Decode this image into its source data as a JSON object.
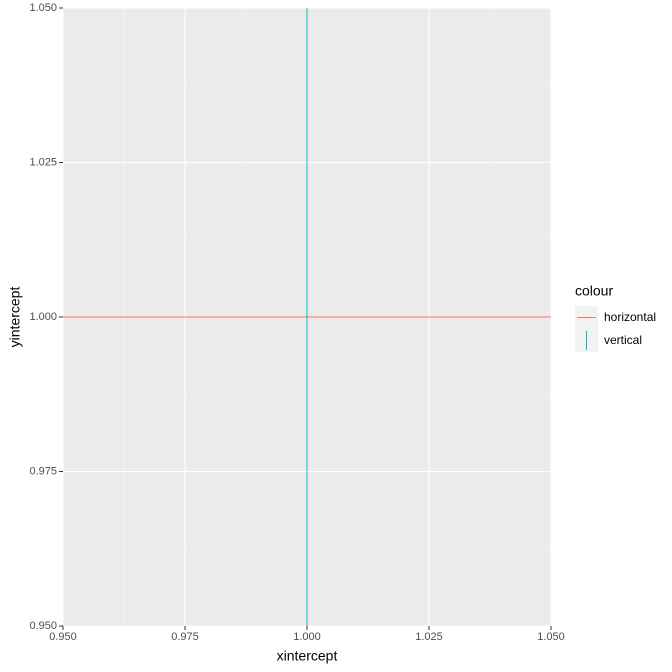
{
  "chart_data": {
    "type": "refline",
    "x_label": "xintercept",
    "y_label": "yintercept",
    "legend_title": "colour",
    "legend_position": "right",
    "series": [
      {
        "name": "horizontal",
        "color": "#F8766D",
        "orientation": "h",
        "values": [
          1
        ]
      },
      {
        "name": "vertical",
        "color": "#00BFC4",
        "orientation": "v",
        "values": [
          1
        ]
      }
    ],
    "xlim": [
      0.95,
      1.05
    ],
    "xticks": [
      {
        "value": 0.95,
        "label": "0.950"
      },
      {
        "value": 0.975,
        "label": "0.975"
      },
      {
        "value": 1,
        "label": "1.000"
      },
      {
        "value": 1.025,
        "label": "1.025"
      },
      {
        "value": 1.05,
        "label": "1.050"
      }
    ],
    "ylim": [
      0.95,
      1.05
    ],
    "yticks": [
      {
        "value": 0.95,
        "label": "0.950"
      },
      {
        "value": 0.975,
        "label": "0.975"
      },
      {
        "value": 1,
        "label": "1.000"
      },
      {
        "value": 1.025,
        "label": "1.025"
      },
      {
        "value": 1.05,
        "label": "1.050"
      }
    ],
    "grid": true
  }
}
